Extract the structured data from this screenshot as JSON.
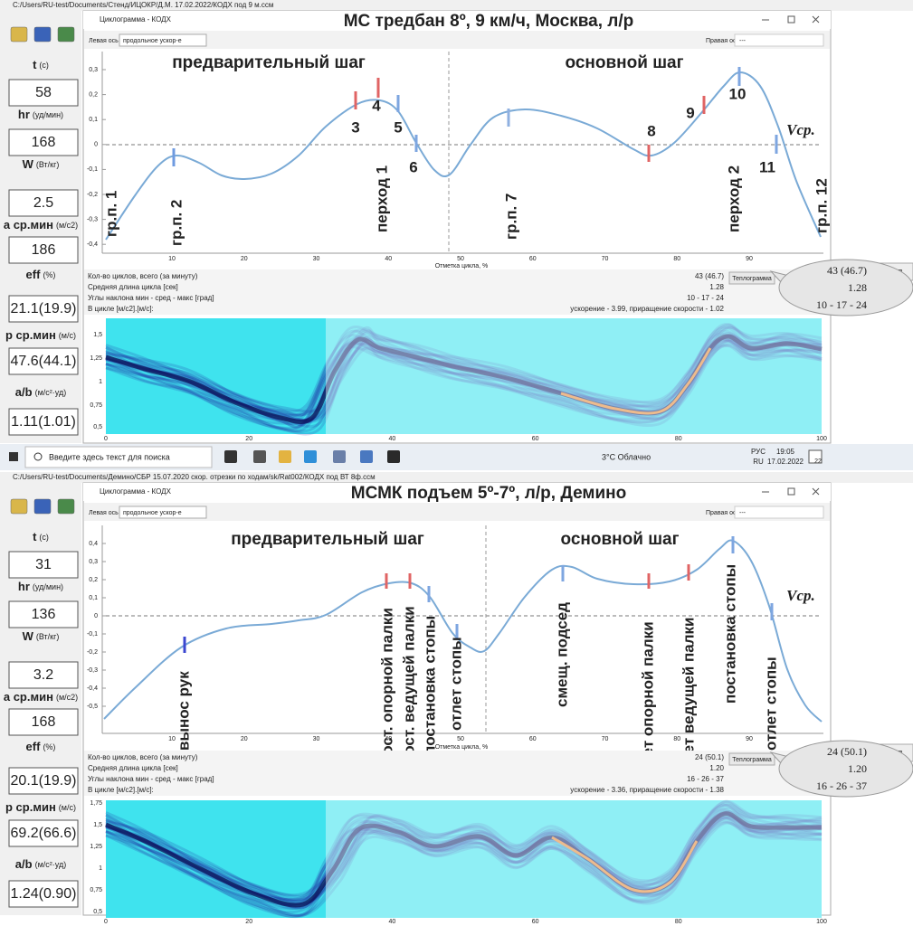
{
  "taskbar": {
    "search": "Введите здесь текст для поиска",
    "weather": "3°C Облачно",
    "lang": [
      "РУС",
      "RU"
    ],
    "time": "19:05",
    "date": "17.02.2022",
    "badge": "22"
  },
  "panels": [
    {
      "file_path": "C:/Users/RU-test/Documents/Стенд/ИЦОКР/Д.М. 17.02.2022/КОДХ под 9 м.ссм",
      "window_title": "Циклограмма - КОДХ",
      "heading": "МС  тредбан 8º, 9 км/ч, Москва, л/р",
      "left_axis": {
        "label": "Левая ось",
        "value": "продольное ускор-е"
      },
      "right_axis": {
        "label": "Правая ось",
        "value": "---"
      },
      "metrics": [
        {
          "name": "t",
          "unit": "(с)",
          "value": "58"
        },
        {
          "name": "hr",
          "unit": "(уд/мин)",
          "value": "168"
        },
        {
          "name": "W",
          "unit": "(Вт/кг)",
          "value": "2.5"
        },
        {
          "name": "a ср.мин",
          "unit": "(м/с2)",
          "value": "186"
        },
        {
          "name": "eff",
          "unit": "(%)",
          "value": "21.1(19.9)"
        },
        {
          "name": "p ср.мин",
          "unit": "(м/с)",
          "value": "47.6(44.1)"
        },
        {
          "name": "a/b",
          "unit": "(м/с²·уд)",
          "value": "1.11(1.01)"
        }
      ],
      "chart": {
        "yticks": [
          "0,3",
          "0,2",
          "0,1",
          "0",
          "-0,1",
          "-0,2",
          "-0,3",
          "-0,4"
        ],
        "xticks": [
          "10",
          "20",
          "30",
          "40",
          "50",
          "60",
          "70",
          "80",
          "90"
        ],
        "xlabel": "Отметка цикла, %",
        "phases": [
          "предварительный шаг",
          "основной шаг"
        ],
        "vref": "Vср.",
        "markers": [
          {
            "label": "3",
            "color": "#e06464"
          },
          {
            "label": "4",
            "color": "#e06464"
          },
          {
            "label": "5",
            "color": "#7ea6e0"
          },
          {
            "label": "6",
            "color": "#7ea6e0"
          },
          {
            "label": "8",
            "color": "#e06464"
          },
          {
            "label": "9",
            "color": "#e06464"
          },
          {
            "label": "10",
            "color": "#7ea6e0"
          },
          {
            "label": "11",
            "color": "#7ea6e0"
          },
          {
            "label": "гр.п. 1",
            "color": "#111111"
          },
          {
            "label": "гр.п. 2",
            "color": "#6f9be0"
          },
          {
            "label": "перход  1",
            "color": "#9ab4e0"
          },
          {
            "label": "гр.п. 7",
            "color": "#8fb0e0"
          },
          {
            "label": "перход  2",
            "color": "#9ab4e0"
          },
          {
            "label": "гр.п. 12",
            "color": "#555555"
          }
        ]
      },
      "stats": {
        "labels": [
          "Кол-во циклов, всего (за минуту)",
          "Средняя длина цикла [сек]",
          "Углы наклона мин - сред - макс [град]",
          "В цикле [м/с2].[м/с]:"
        ],
        "values": [
          "43 (46.7)",
          "1.28",
          "10 - 17 - 24",
          "ускорение - 3.99, приращение скорости - 1.02"
        ],
        "button": "Теплограмма"
      },
      "callout": {
        "values": [
          "43 (46.7)",
          "1.28",
          "10 - 17 - 24"
        ],
        "button": "Тепл"
      },
      "heatmap": {
        "yticks": [
          "1,5",
          "1,25",
          "1",
          "0,75",
          "0,5"
        ],
        "xticks": [
          "0",
          "20",
          "40",
          "60",
          "80",
          "100"
        ]
      }
    },
    {
      "file_path": "C:/Users/RU-test/Documents/Демино/СБР 15.07.2020 скор. отрезки по ходам/sk/Rat002/КОДХ под ВТ 8ф.ссм",
      "window_title": "Циклограмма - КОДХ",
      "heading": "МСМК   подъем 5º-7º, л/р, Демино",
      "left_axis": {
        "label": "Левая ось",
        "value": "продольное ускор-е"
      },
      "right_axis": {
        "label": "Правая ось",
        "value": "---"
      },
      "metrics": [
        {
          "name": "t",
          "unit": "(с)",
          "value": "31"
        },
        {
          "name": "hr",
          "unit": "(уд/мин)",
          "value": "136"
        },
        {
          "name": "W",
          "unit": "(Вт/кг)",
          "value": "3.2"
        },
        {
          "name": "a ср.мин",
          "unit": "(м/с2)",
          "value": "168"
        },
        {
          "name": "eff",
          "unit": "(%)",
          "value": "20.1(19.9)"
        },
        {
          "name": "p ср.мин",
          "unit": "(м/с)",
          "value": "69.2(66.6)"
        },
        {
          "name": "a/b",
          "unit": "(м/с²·уд)",
          "value": "1.24(0.90)"
        }
      ],
      "chart": {
        "yticks": [
          "0,4",
          "0,3",
          "0,2",
          "0,1",
          "0",
          "-0,1",
          "-0,2",
          "-0,3",
          "-0,4",
          "-0,5"
        ],
        "xticks": [
          "10",
          "20",
          "30",
          "40",
          "50",
          "60",
          "70",
          "80",
          "90"
        ],
        "xlabel": "Отметка цикла, %",
        "phases": [
          "предварительный шаг",
          "основной шаг"
        ],
        "vref": "Vср.",
        "markers": [
          {
            "label": "вынос рук",
            "color": "#3b47d0"
          },
          {
            "label": "пост. опорной  палки",
            "color": "#e06464"
          },
          {
            "label": "пост. ведущей палки",
            "color": "#e06464"
          },
          {
            "label": "постановка  стопы",
            "color": "#7ea6e0"
          },
          {
            "label": "отлет  стопы",
            "color": "#7ea6e0"
          },
          {
            "label": "смещ. подсед",
            "color": "#7ea6e0"
          },
          {
            "label": "отлет  опорной палки",
            "color": "#e06464"
          },
          {
            "label": "отлет  ведущей палки",
            "color": "#e06464"
          },
          {
            "label": "постановка  стопы",
            "color": "#7ea6e0"
          },
          {
            "label": "отлет  стопы",
            "color": "#7ea6e0"
          }
        ]
      },
      "stats": {
        "labels": [
          "Кол-во циклов, всего (за минуту)",
          "Средняя длина цикла [сек]",
          "Углы наклона мин - сред - макс [град]",
          "В цикле [м/с2].[м/с]:"
        ],
        "values": [
          "24 (50.1)",
          "1.20",
          "16 - 26 - 37",
          "ускорение - 3.36, приращение скорости - 1.38"
        ],
        "button": "Теплограмма"
      },
      "callout": {
        "values": [
          "24 (50.1)",
          "1.20",
          "16 - 26 - 37"
        ],
        "button": "Тепл"
      },
      "heatmap": {
        "yticks": [
          "1,75",
          "1,5",
          "1,25",
          "1",
          "0,75",
          "0,5"
        ],
        "xticks": [
          "0",
          "20",
          "40",
          "60",
          "80",
          "100"
        ]
      }
    }
  ]
}
